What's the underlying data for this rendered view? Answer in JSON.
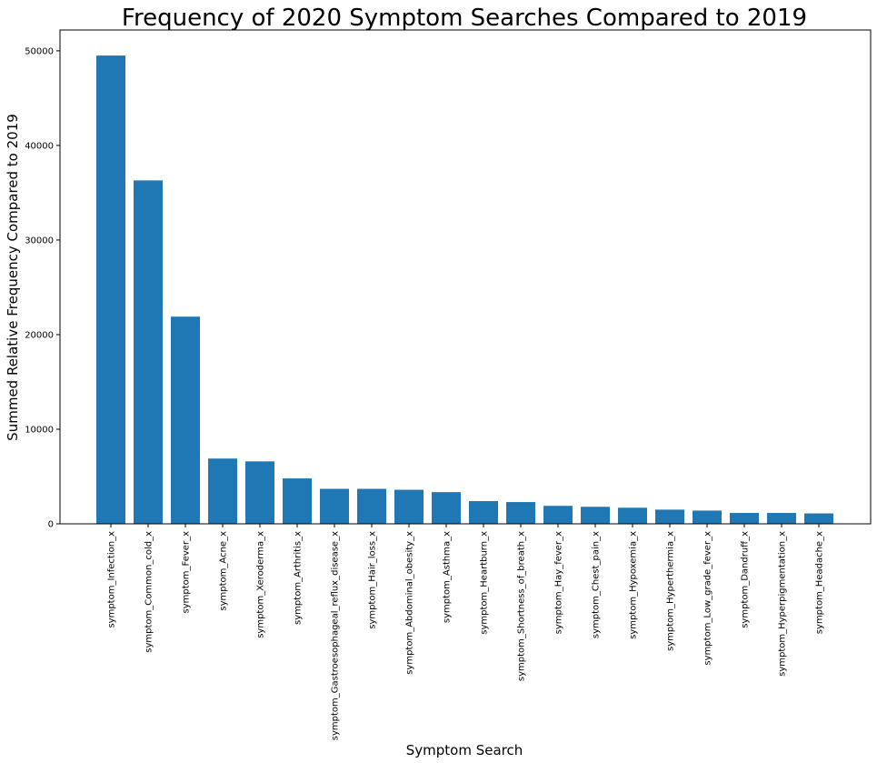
{
  "chart_data": {
    "type": "bar",
    "title": "Frequency of 2020 Symptom Searches Compared to 2019",
    "xlabel": "Symptom Search",
    "ylabel": "Summed Relative Frequency Compared to 2019",
    "ylim": [
      0,
      52200
    ],
    "yticks": [
      0,
      10000,
      20000,
      30000,
      40000,
      50000
    ],
    "grid": false,
    "bar_color": "#1f77b4",
    "categories": [
      "symptom_Infection_x",
      "symptom_Common_cold_x",
      "symptom_Fever_x",
      "symptom_Acne_x",
      "symptom_Xeroderma_x",
      "symptom_Arthritis_x",
      "symptom_Gastroesophageal_reflux_disease_x",
      "symptom_Hair_loss_x",
      "symptom_Abdominal_obesity_x",
      "symptom_Asthma_x",
      "symptom_Heartburn_x",
      "symptom_Shortness_of_breath_x",
      "symptom_Hay_fever_x",
      "symptom_Chest_pain_x",
      "symptom_Hypoxemia_x",
      "symptom_Hyperthermia_x",
      "symptom_Low_grade_fever_x",
      "symptom_Dandruff_x",
      "symptom_Hyperpigmentation_x",
      "symptom_Headache_x"
    ],
    "values": [
      49500,
      36300,
      21900,
      6900,
      6600,
      4800,
      3700,
      3700,
      3600,
      3350,
      2400,
      2300,
      1900,
      1800,
      1700,
      1500,
      1400,
      1150,
      1150,
      1100
    ]
  }
}
